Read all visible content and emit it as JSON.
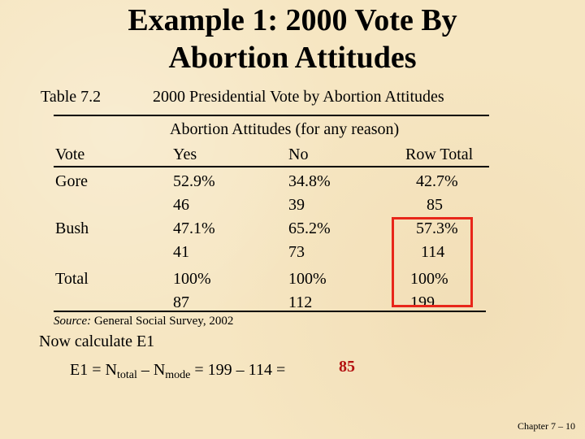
{
  "title": {
    "line1": "Example 1: 2000 Vote By",
    "line2": "Abortion Attitudes"
  },
  "table": {
    "label": "Table 7.2",
    "caption": "2000 Presidential Vote by Abortion Attitudes",
    "spanner": "Abortion Attitudes (for any reason)",
    "headers": {
      "row_label": "Vote",
      "col1": "Yes",
      "col2": "No",
      "col3": "Row Total"
    },
    "rows": [
      {
        "label": "Gore",
        "yes_pct": "52.9%",
        "yes_n": "46",
        "no_pct": "34.8%",
        "no_n": "39",
        "total_pct": "42.7%",
        "total_n": "85"
      },
      {
        "label": "Bush",
        "yes_pct": "47.1%",
        "yes_n": "41",
        "no_pct": "65.2%",
        "no_n": "73",
        "total_pct": "57.3%",
        "total_n": "114"
      },
      {
        "label": "Total",
        "yes_pct": "100%",
        "yes_n": "87",
        "no_pct": "100%",
        "no_n": "112",
        "total_pct": "100%",
        "total_n": "199"
      }
    ],
    "source_label": "Source:",
    "source_text": "General Social Survey, 2002",
    "highlight_color": "#e8261a"
  },
  "calc": {
    "instruction": "Now calculate E1",
    "lhs": "E1   =   N",
    "sub_total": "total",
    "minus": " – N",
    "sub_mode": "mode",
    "rhs": " = 199 – 114 = ",
    "answer": "85",
    "answer_color": "#b31111"
  },
  "footer": "Chapter 7 – 10"
}
